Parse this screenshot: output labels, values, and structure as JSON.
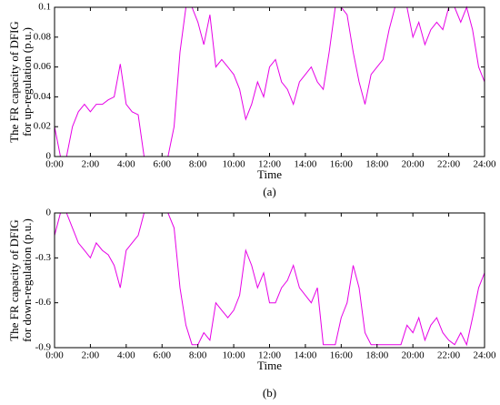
{
  "chart_data": [
    {
      "type": "line",
      "xlabel": "Time",
      "ylabel": [
        "The FR capacity of DFIG",
        "for up-regulation (p.u.)"
      ],
      "label": "(a)",
      "color": "#e600e6",
      "x": [
        0,
        0.33,
        0.67,
        1,
        1.33,
        1.67,
        2,
        2.33,
        2.67,
        3,
        3.33,
        3.67,
        4,
        4.33,
        4.67,
        5,
        5.33,
        5.67,
        6,
        6.33,
        6.67,
        7,
        7.33,
        7.67,
        8,
        8.33,
        8.67,
        9,
        9.33,
        9.67,
        10,
        10.33,
        10.67,
        11,
        11.33,
        11.67,
        12,
        12.33,
        12.67,
        13,
        13.33,
        13.67,
        14,
        14.33,
        14.67,
        15,
        15.33,
        15.67,
        16,
        16.33,
        16.67,
        17,
        17.33,
        17.67,
        18,
        18.33,
        18.67,
        19,
        19.33,
        19.67,
        20,
        20.33,
        20.67,
        21,
        21.33,
        21.67,
        22,
        22.33,
        22.67,
        23,
        23.33,
        23.67,
        24
      ],
      "values": [
        0.02,
        0,
        0,
        0.02,
        0.03,
        0.035,
        0.03,
        0.035,
        0.035,
        0.038,
        0.04,
        0.062,
        0.035,
        0.03,
        0.028,
        0,
        0,
        0,
        0,
        0,
        0.02,
        0.07,
        0.1,
        0.1,
        0.09,
        0.075,
        0.095,
        0.06,
        0.065,
        0.06,
        0.055,
        0.045,
        0.025,
        0.035,
        0.05,
        0.04,
        0.06,
        0.065,
        0.05,
        0.045,
        0.035,
        0.05,
        0.055,
        0.06,
        0.05,
        0.045,
        0.07,
        0.1,
        0.1,
        0.095,
        0.07,
        0.05,
        0.035,
        0.055,
        0.06,
        0.065,
        0.085,
        0.1,
        0.1,
        0.1,
        0.08,
        0.09,
        0.075,
        0.085,
        0.09,
        0.085,
        0.1,
        0.1,
        0.09,
        0.1,
        0.085,
        0.06,
        0.05
      ],
      "xlim": [
        0,
        24
      ],
      "xticks": [
        {
          "value": 0,
          "label": "0:00"
        },
        {
          "value": 2,
          "label": "2:00"
        },
        {
          "value": 4,
          "label": "4:00"
        },
        {
          "value": 6,
          "label": "6:00"
        },
        {
          "value": 8,
          "label": "8:00"
        },
        {
          "value": 10,
          "label": "10:00"
        },
        {
          "value": 12,
          "label": "12:00"
        },
        {
          "value": 14,
          "label": "14:00"
        },
        {
          "value": 16,
          "label": "16:00"
        },
        {
          "value": 18,
          "label": "18:00"
        },
        {
          "value": 20,
          "label": "20:00"
        },
        {
          "value": 22,
          "label": "22:00"
        },
        {
          "value": 24,
          "label": "24:00"
        }
      ],
      "ylim": [
        0,
        0.1
      ],
      "yticks": [
        0,
        0.02,
        0.04,
        0.06,
        0.08,
        0.1
      ]
    },
    {
      "type": "line",
      "xlabel": "Time",
      "ylabel": [
        "The FR capacity of DFIG",
        "for down-regulation (p.u.)"
      ],
      "label": "(b)",
      "color": "#e600e6",
      "x": [
        0,
        0.33,
        0.67,
        1,
        1.33,
        1.67,
        2,
        2.33,
        2.67,
        3,
        3.33,
        3.67,
        4,
        4.33,
        4.67,
        5,
        5.33,
        5.67,
        6,
        6.33,
        6.67,
        7,
        7.33,
        7.67,
        8,
        8.33,
        8.67,
        9,
        9.33,
        9.67,
        10,
        10.33,
        10.67,
        11,
        11.33,
        11.67,
        12,
        12.33,
        12.67,
        13,
        13.33,
        13.67,
        14,
        14.33,
        14.67,
        15,
        15.33,
        15.67,
        16,
        16.33,
        16.67,
        17,
        17.33,
        17.67,
        18,
        18.33,
        18.67,
        19,
        19.33,
        19.67,
        20,
        20.33,
        20.67,
        21,
        21.33,
        21.67,
        22,
        22.33,
        22.67,
        23,
        23.33,
        23.67,
        24
      ],
      "values": [
        -0.15,
        0,
        0,
        -0.1,
        -0.2,
        -0.25,
        -0.3,
        -0.2,
        -0.25,
        -0.28,
        -0.35,
        -0.5,
        -0.25,
        -0.2,
        -0.15,
        0,
        0,
        0,
        0,
        0,
        -0.1,
        -0.5,
        -0.75,
        -0.88,
        -0.88,
        -0.8,
        -0.85,
        -0.6,
        -0.65,
        -0.7,
        -0.65,
        -0.55,
        -0.25,
        -0.35,
        -0.5,
        -0.4,
        -0.6,
        -0.6,
        -0.5,
        -0.45,
        -0.35,
        -0.5,
        -0.55,
        -0.6,
        -0.5,
        -0.88,
        -0.88,
        -0.88,
        -0.7,
        -0.6,
        -0.35,
        -0.5,
        -0.8,
        -0.88,
        -0.88,
        -0.88,
        -0.88,
        -0.88,
        -0.88,
        -0.75,
        -0.8,
        -0.7,
        -0.85,
        -0.75,
        -0.7,
        -0.8,
        -0.85,
        -0.88,
        -0.8,
        -0.88,
        -0.7,
        -0.5,
        -0.4
      ],
      "xlim": [
        0,
        24
      ],
      "xticks": [
        {
          "value": 0,
          "label": "0:00"
        },
        {
          "value": 2,
          "label": "2:00"
        },
        {
          "value": 4,
          "label": "4:00"
        },
        {
          "value": 6,
          "label": "6:00"
        },
        {
          "value": 8,
          "label": "8:00"
        },
        {
          "value": 10,
          "label": "10:00"
        },
        {
          "value": 12,
          "label": "12:00"
        },
        {
          "value": 14,
          "label": "14:00"
        },
        {
          "value": 16,
          "label": "16:00"
        },
        {
          "value": 18,
          "label": "18:00"
        },
        {
          "value": 20,
          "label": "20:00"
        },
        {
          "value": 22,
          "label": "22:00"
        },
        {
          "value": 24,
          "label": "24:00"
        }
      ],
      "ylim": [
        -0.9,
        0
      ],
      "yticks": [
        -0.9,
        -0.6,
        -0.3,
        0
      ]
    }
  ]
}
